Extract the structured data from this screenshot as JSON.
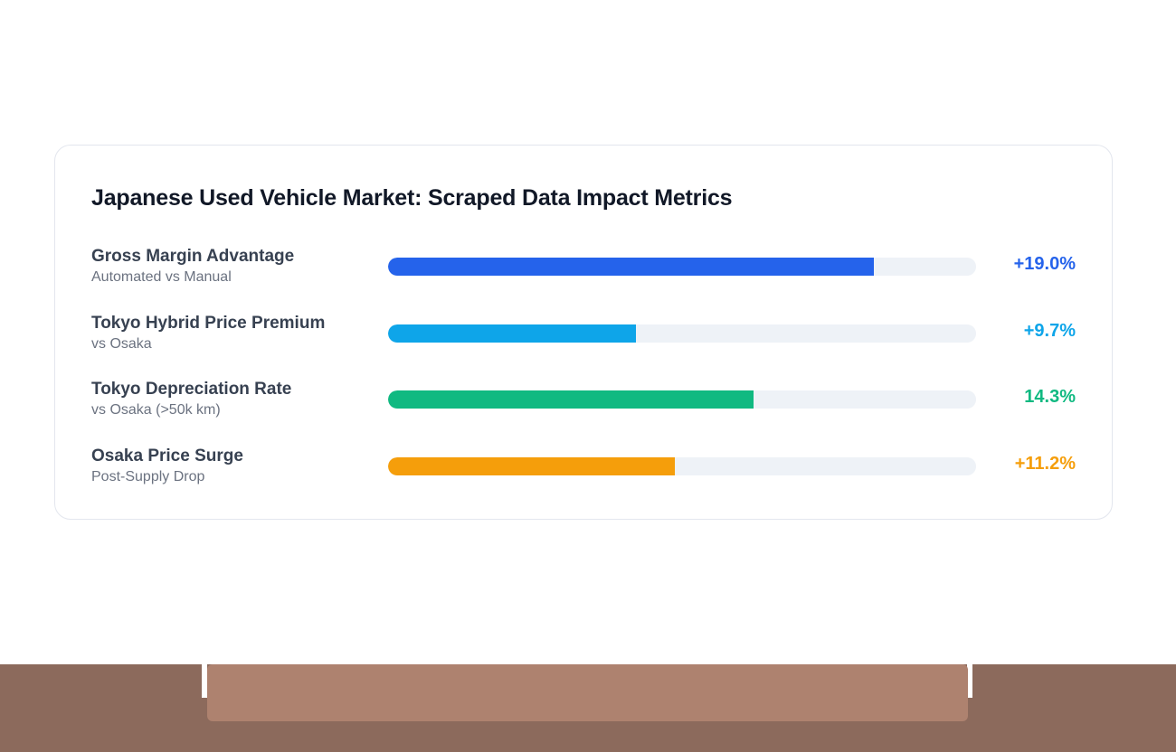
{
  "chart_data": {
    "type": "bar",
    "orientation": "horizontal",
    "title": "Japanese Used Vehicle Market: Scraped Data Impact Metrics",
    "xlim": [
      0,
      23
    ],
    "grid": false,
    "metrics": [
      {
        "label": "Gross Margin Advantage",
        "sublabel": "Automated vs Manual",
        "value": 19.0,
        "display": "+19.0%",
        "color": "#2563eb"
      },
      {
        "label": "Tokyo Hybrid Price Premium",
        "sublabel": "vs Osaka",
        "value": 9.7,
        "display": "+9.7%",
        "color": "#0ea5e9"
      },
      {
        "label": "Tokyo Depreciation Rate",
        "sublabel": "vs Osaka (>50k km)",
        "value": 14.3,
        "display": "14.3%",
        "color": "#10b981"
      },
      {
        "label": "Osaka Price Surge",
        "sublabel": "Post-Supply Drop",
        "value": 11.2,
        "display": "+11.2%",
        "color": "#f59e0b"
      }
    ]
  },
  "footer": {
    "bar_color": "#8c6a5c",
    "panel_color": "#ae826f"
  }
}
